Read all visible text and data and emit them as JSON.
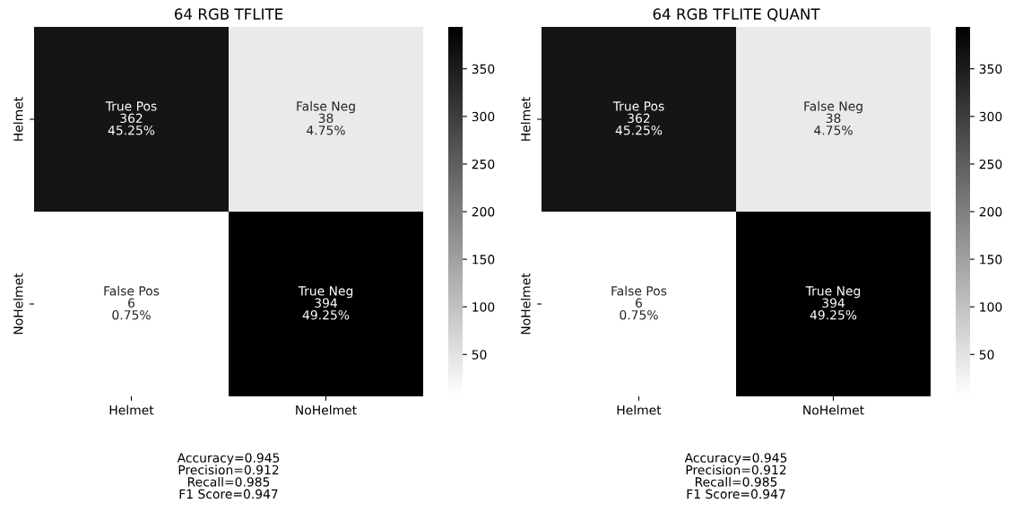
{
  "chart_data": [
    {
      "type": "heatmap",
      "title": "64 RGB TFLITE",
      "categories": [
        "Helmet",
        "NoHelmet"
      ],
      "y_categories": [
        "Helmet",
        "NoHelmet"
      ],
      "cells": [
        [
          362,
          38
        ],
        [
          6,
          394
        ]
      ],
      "cell_labels": [
        [
          "True Pos\n362\n45.25%",
          "False Neg\n38\n4.75%"
        ],
        [
          "False Pos\n6\n0.75%",
          "True Neg\n394\n49.25%"
        ]
      ],
      "clim": [
        6,
        394
      ],
      "cticks": [
        50,
        100,
        150,
        200,
        250,
        300,
        350
      ],
      "annotations": [
        "Accuracy=0.945\nPrecision=0.912\nRecall=0.985\nF1 Score=0.947"
      ]
    },
    {
      "type": "heatmap",
      "title": "64 RGB TFLITE QUANT",
      "categories": [
        "Helmet",
        "NoHelmet"
      ],
      "y_categories": [
        "Helmet",
        "NoHelmet"
      ],
      "cells": [
        [
          362,
          38
        ],
        [
          6,
          394
        ]
      ],
      "cell_labels": [
        [
          "True Pos\n362\n45.25%",
          "False Neg\n38\n4.75%"
        ],
        [
          "False Pos\n6\n0.75%",
          "True Neg\n394\n49.25%"
        ]
      ],
      "clim": [
        6,
        394
      ],
      "cticks": [
        50,
        100,
        150,
        200,
        250,
        300,
        350
      ],
      "annotations": [
        "Accuracy=0.945\nPrecision=0.912\nRecall=0.985\nF1 Score=0.947"
      ]
    }
  ]
}
